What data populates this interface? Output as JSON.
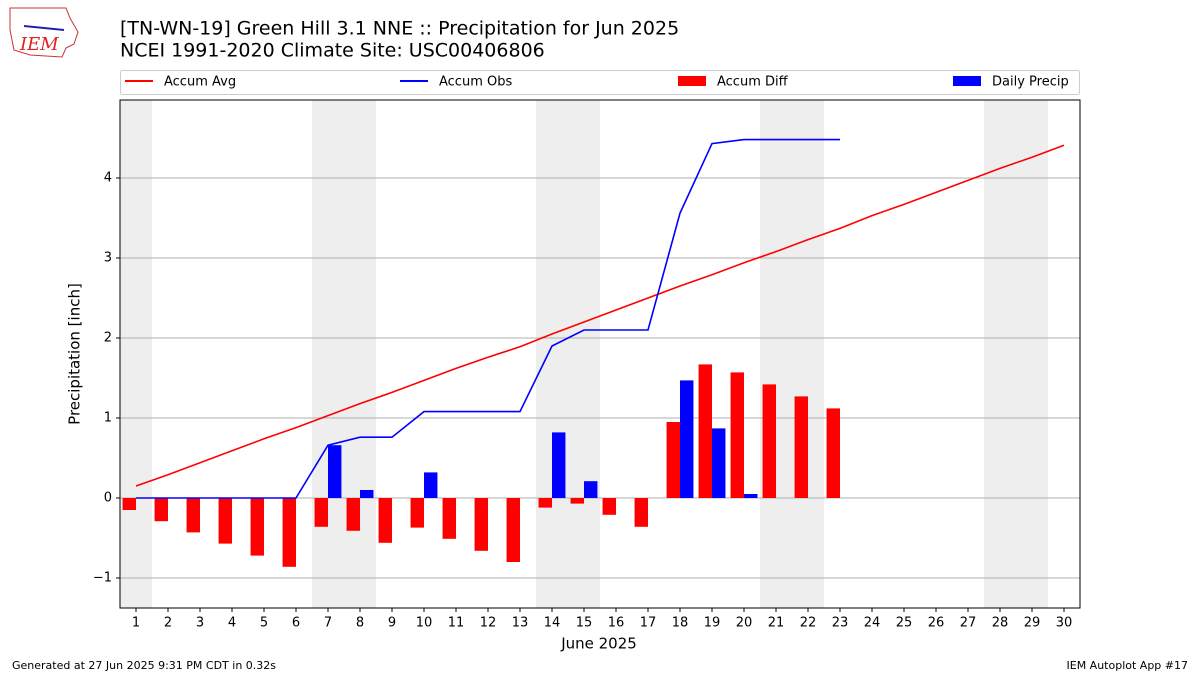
{
  "chart_data": {
    "type": "bar-line",
    "title": "[TN-WN-19] Green Hill 3.1 NNE :: Precipitation for Jun 2025",
    "subtitle": "NCEI 1991-2020 Climate Site: USC00406806",
    "x_label": "June 2025",
    "y_label": "Precipitation [inch]",
    "footer_left": "Generated at 27 Jun 2025 9:31 PM CDT in 0.32s",
    "footer_right": "IEM Autoplot App #17",
    "logo_text": "IEM",
    "x": [
      1,
      2,
      3,
      4,
      5,
      6,
      7,
      8,
      9,
      10,
      11,
      12,
      13,
      14,
      15,
      16,
      17,
      18,
      19,
      20,
      21,
      22,
      23,
      24,
      25,
      26,
      27,
      28,
      29,
      30
    ],
    "xlim": [
      0.5,
      30.5
    ],
    "xticks": [
      1,
      2,
      3,
      4,
      5,
      6,
      7,
      8,
      9,
      10,
      11,
      12,
      13,
      14,
      15,
      16,
      17,
      18,
      19,
      20,
      21,
      22,
      23,
      24,
      25,
      26,
      27,
      28,
      29,
      30
    ],
    "ylim": [
      -1.375,
      4.975
    ],
    "yticks": [
      {
        "value": -1,
        "label": "−1"
      },
      0,
      1,
      2,
      3,
      4
    ],
    "grid": true,
    "shaded_days": [
      1,
      7,
      8,
      14,
      15,
      21,
      22,
      28,
      29
    ],
    "series": [
      {
        "name": "Accum Avg",
        "kind": "line",
        "color": "#ff0000",
        "values": [
          0.15,
          0.29,
          0.44,
          0.59,
          0.74,
          0.88,
          1.03,
          1.18,
          1.32,
          1.47,
          1.62,
          1.76,
          1.89,
          2.05,
          2.2,
          2.35,
          2.5,
          2.65,
          2.79,
          2.94,
          3.08,
          3.23,
          3.37,
          3.53,
          3.67,
          3.82,
          3.97,
          4.12,
          4.26,
          4.41
        ]
      },
      {
        "name": "Accum Obs",
        "kind": "line",
        "color": "#0000ff",
        "values": [
          0,
          0,
          0,
          0,
          0,
          0,
          0.66,
          0.76,
          0.76,
          1.08,
          1.08,
          1.08,
          1.08,
          1.9,
          2.1,
          2.1,
          2.1,
          3.56,
          4.43,
          4.48,
          4.48,
          4.48,
          4.48,
          null,
          null,
          null,
          null,
          null,
          null,
          null
        ]
      },
      {
        "name": "Accum Diff",
        "kind": "bar",
        "side": "left",
        "color": "#ff0000",
        "values": [
          -0.15,
          -0.29,
          -0.43,
          -0.57,
          -0.72,
          -0.86,
          -0.36,
          -0.41,
          -0.56,
          -0.37,
          -0.51,
          -0.66,
          -0.8,
          -0.12,
          -0.07,
          -0.21,
          -0.36,
          0.95,
          1.67,
          1.57,
          1.42,
          1.27,
          1.12,
          null,
          null,
          null,
          null,
          null,
          null,
          null
        ]
      },
      {
        "name": "Daily Precip",
        "kind": "bar",
        "side": "right",
        "color": "#0000ff",
        "values": [
          0,
          0,
          0,
          0,
          0,
          0,
          0.66,
          0.1,
          0,
          0.32,
          0,
          0,
          0,
          0.82,
          0.21,
          0,
          0,
          1.47,
          0.87,
          0.05,
          0,
          0,
          0,
          null,
          null,
          null,
          null,
          null,
          null,
          null
        ]
      }
    ]
  }
}
